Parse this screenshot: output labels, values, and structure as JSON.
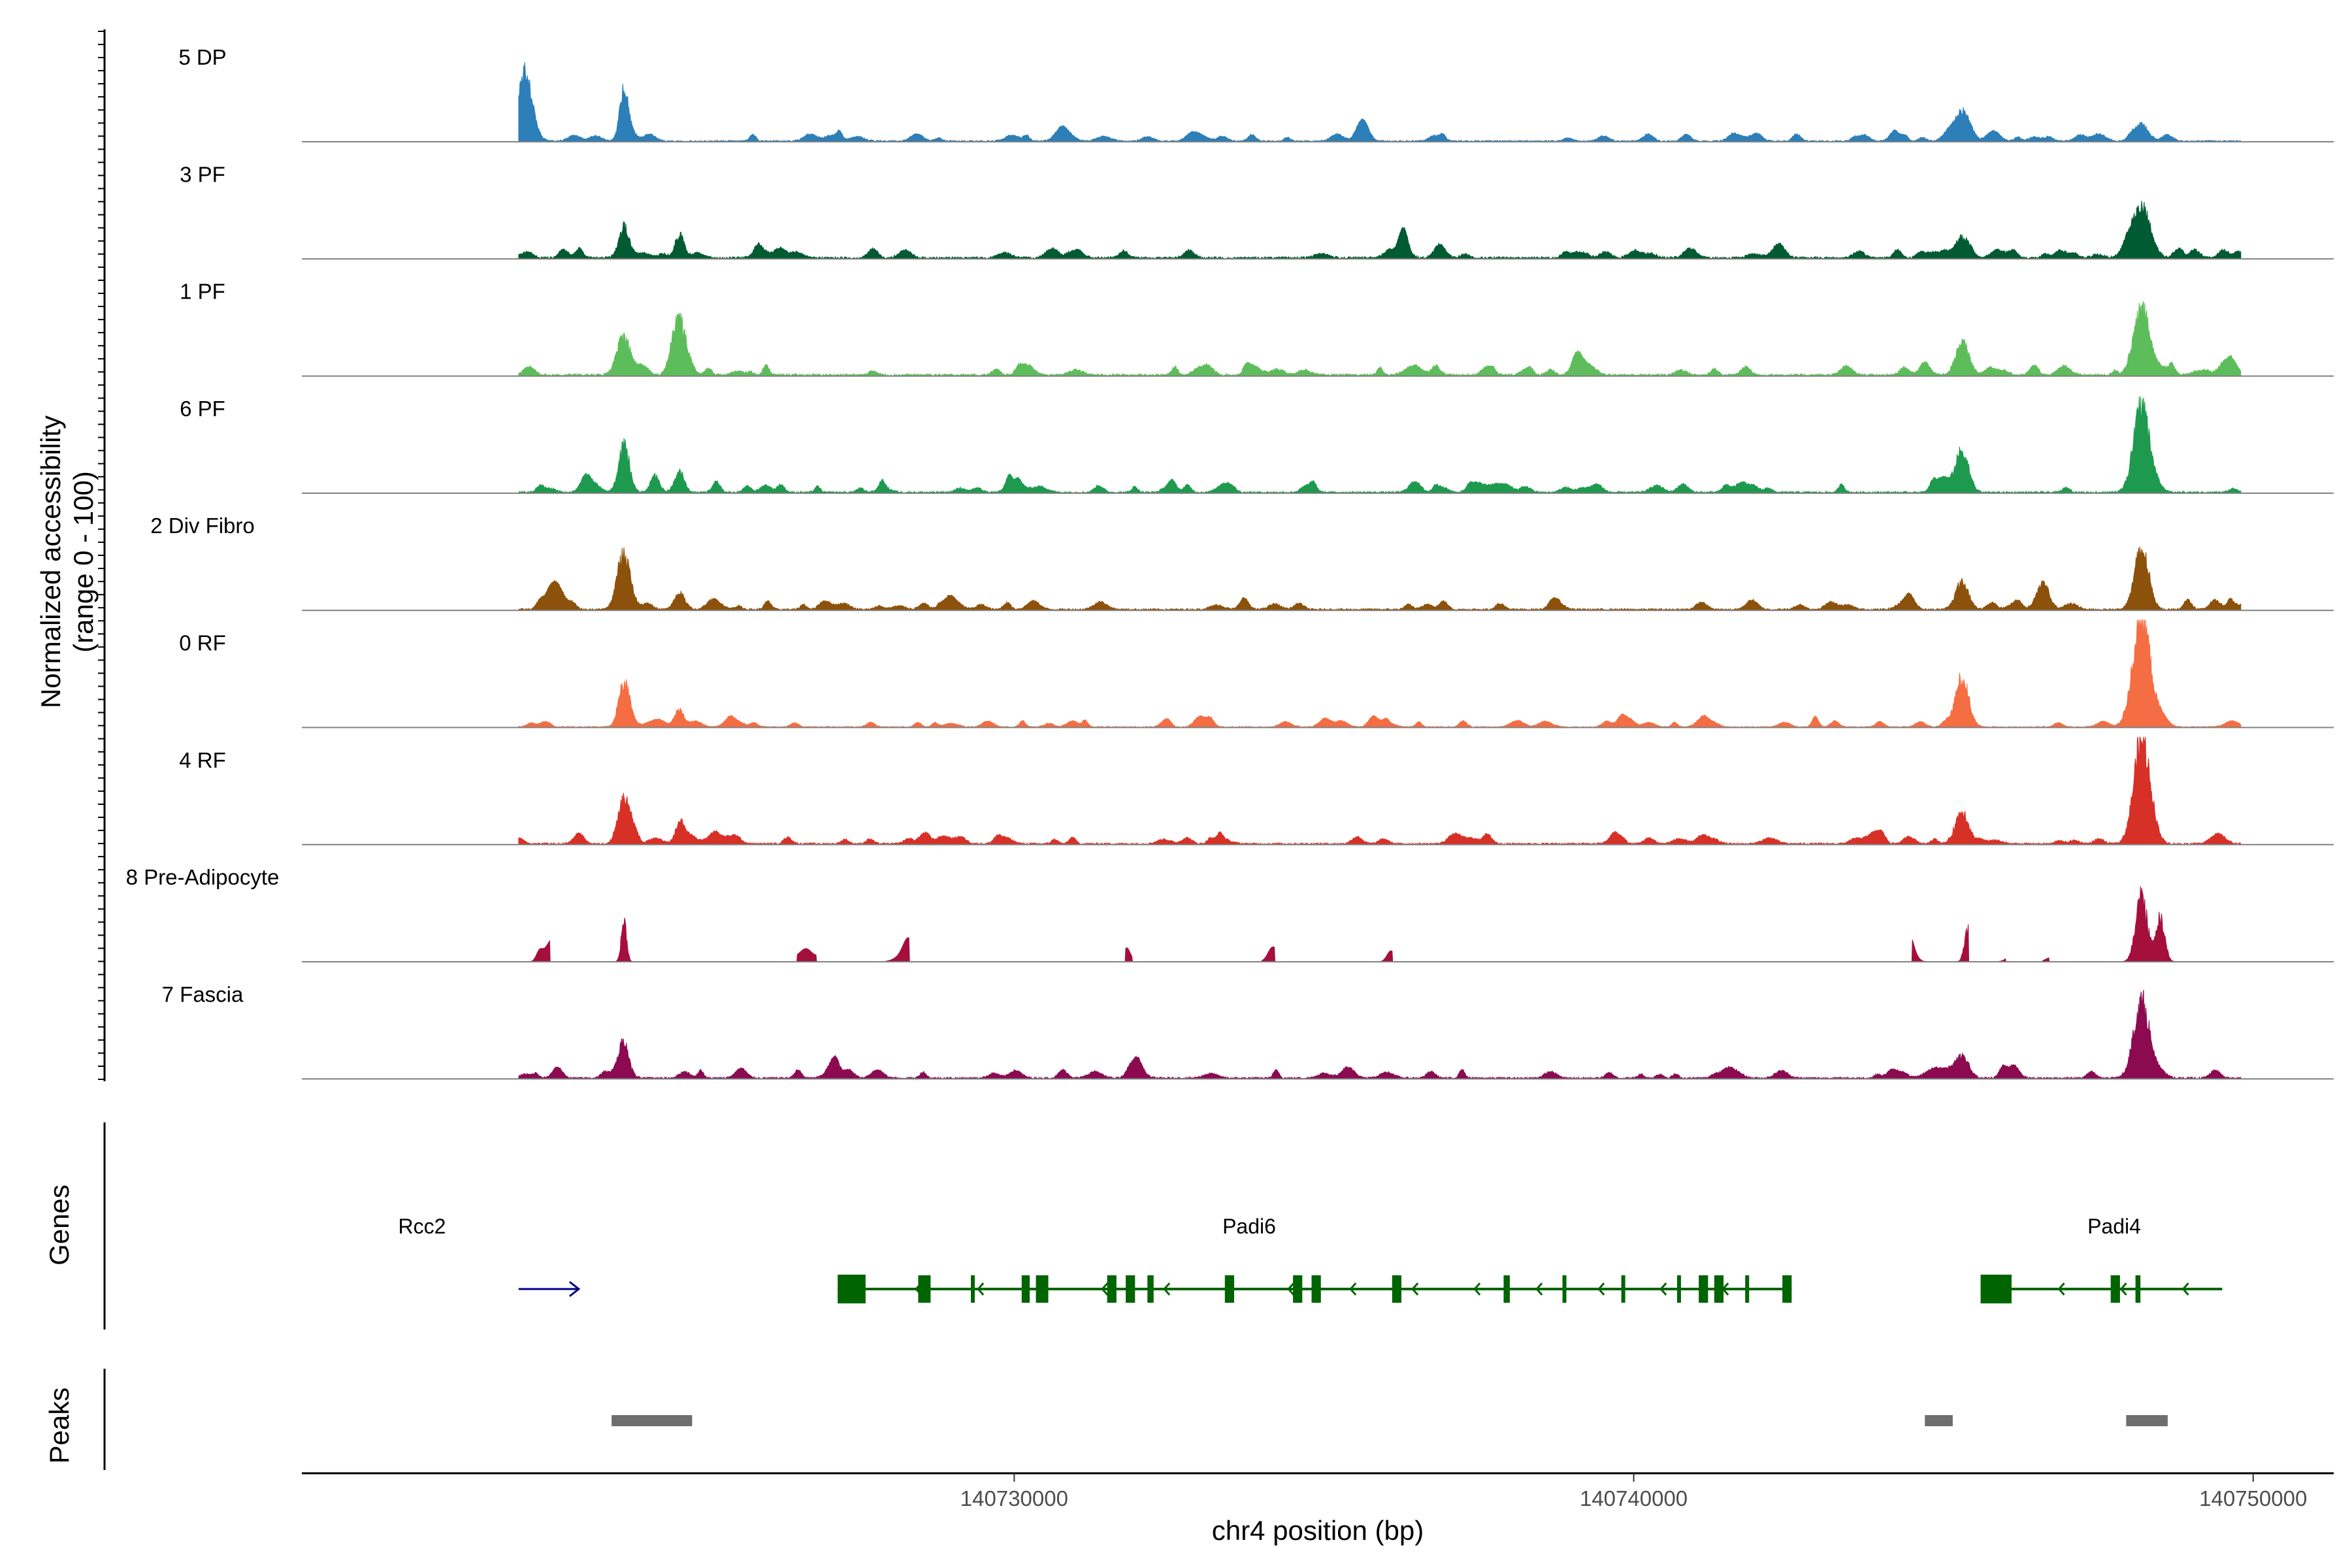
{
  "chart_data": {
    "type": "area",
    "title": "",
    "chromosome": "chr4",
    "x_range": [
      140718500,
      140751300
    ],
    "xlabel": "chr4 position (bp)",
    "x_ticks": [
      140730000,
      140740000,
      140750000
    ],
    "x_tick_labels": [
      "140730000",
      "140740000",
      "140750000"
    ],
    "ylabel_line1": "Normalized accessibility",
    "ylabel_line2": "(range 0 - 100)",
    "ylim": [
      0,
      100
    ],
    "track_labels": {
      "genes": "Genes",
      "peaks": "Peaks"
    },
    "series": [
      {
        "name": "5 DP",
        "color": "#2C7FB8",
        "noise": 4,
        "gaps": [],
        "peaks": [
          [
            140722100,
            60,
            150
          ],
          [
            140723700,
            45,
            100
          ],
          [
            140745300,
            20,
            150
          ],
          [
            140748200,
            15,
            150
          ]
        ]
      },
      {
        "name": "3 PF",
        "color": "#005A32",
        "noise": 6,
        "gaps": [],
        "peaks": [
          [
            140723700,
            28,
            120
          ],
          [
            140724600,
            22,
            100
          ],
          [
            140745300,
            18,
            150
          ],
          [
            140748200,
            45,
            200
          ]
        ]
      },
      {
        "name": "1 PF",
        "color": "#5DBD5A",
        "noise": 6,
        "gaps": [],
        "peaks": [
          [
            140723700,
            32,
            150
          ],
          [
            140724600,
            50,
            150
          ],
          [
            140745300,
            27,
            150
          ],
          [
            140748200,
            60,
            180
          ]
        ]
      },
      {
        "name": "6 PF",
        "color": "#1E9A4E",
        "noise": 5,
        "gaps": [],
        "peaks": [
          [
            140723700,
            45,
            120
          ],
          [
            140724200,
            15,
            100
          ],
          [
            140724600,
            15,
            100
          ],
          [
            140745300,
            38,
            150
          ],
          [
            140748200,
            80,
            180
          ]
        ]
      },
      {
        "name": "2 Div Fibro",
        "color": "#8C510A",
        "noise": 5,
        "gaps": [],
        "peaks": [
          [
            140723700,
            48,
            150
          ],
          [
            140724600,
            15,
            120
          ],
          [
            140745300,
            25,
            150
          ],
          [
            140746600,
            18,
            150
          ],
          [
            140748200,
            55,
            160
          ]
        ]
      },
      {
        "name": "0 RF",
        "color": "#F46D43",
        "noise": 3,
        "gaps": [],
        "peaks": [
          [
            140723700,
            40,
            120
          ],
          [
            140724600,
            12,
            100
          ],
          [
            140745300,
            45,
            150
          ],
          [
            140748200,
            100,
            200
          ]
        ]
      },
      {
        "name": "4 RF",
        "color": "#D73027",
        "noise": 5,
        "gaps": [],
        "peaks": [
          [
            140723700,
            38,
            130
          ],
          [
            140724600,
            18,
            100
          ],
          [
            140745300,
            30,
            150
          ],
          [
            140748200,
            95,
            180
          ]
        ]
      },
      {
        "name": "8 Pre-Adipocyte",
        "color": "#A50F3C",
        "noise": 10,
        "gaps": [
          [
            140722000,
            140722500
          ],
          [
            140723400,
            140723900
          ],
          [
            140726500,
            140726800
          ],
          [
            140727900,
            140728300
          ],
          [
            140731800,
            140731900
          ],
          [
            140734000,
            140734200
          ],
          [
            140735300,
            140735700
          ],
          [
            140735800,
            140736100
          ],
          [
            140739100,
            140739200
          ],
          [
            140744500,
            140745400
          ],
          [
            140745900,
            140746000
          ],
          [
            140746600,
            140746700
          ],
          [
            140747800,
            140748800
          ]
        ],
        "peaks": [
          [
            140723700,
            38,
            60
          ],
          [
            140745400,
            30,
            80
          ],
          [
            140748200,
            60,
            130
          ],
          [
            140748500,
            40,
            100
          ]
        ]
      },
      {
        "name": "7 Fascia",
        "color": "#8B0A50",
        "noise": 5,
        "gaps": [],
        "peaks": [
          [
            140723700,
            28,
            120
          ],
          [
            140745300,
            20,
            150
          ],
          [
            140748200,
            70,
            180
          ]
        ]
      }
    ],
    "genes": [
      {
        "name": "Rcc2",
        "color": "#000080",
        "strand": "+",
        "start": 140722000,
        "end": 140723000,
        "exons": [],
        "arrow_only": true
      },
      {
        "name": "Padi6",
        "color": "#006400",
        "strand": "-",
        "start": 140727150,
        "end": 140742550,
        "exons": [
          [
            140727150,
            140727600
          ],
          [
            140728450,
            140728650
          ],
          [
            140729300,
            140729330
          ],
          [
            140730120,
            140730250
          ],
          [
            140730350,
            140730550
          ],
          [
            140731500,
            140731650
          ],
          [
            140731800,
            140731950
          ],
          [
            140732150,
            140732250
          ],
          [
            140733400,
            140733550
          ],
          [
            140734500,
            140734650
          ],
          [
            140734800,
            140734950
          ],
          [
            140736100,
            140736250
          ],
          [
            140737900,
            140738000
          ],
          [
            140738850,
            140738900
          ],
          [
            140739800,
            140739850
          ],
          [
            140740700,
            140740750
          ],
          [
            140741050,
            140741200
          ],
          [
            140741300,
            140741450
          ],
          [
            140741800,
            140741830
          ],
          [
            140742400,
            140742550
          ]
        ]
      },
      {
        "name": "Padi4",
        "color": "#006400",
        "strand": "-",
        "start": 140745600,
        "end": 140749500,
        "exons": [
          [
            140745600,
            140746100
          ],
          [
            140747700,
            140747850
          ],
          [
            140748100,
            140748180
          ]
        ]
      }
    ],
    "peaks_track": [
      [
        140723500,
        140724800
      ],
      [
        140744700,
        140745150
      ],
      [
        140747950,
        140748620
      ]
    ]
  }
}
